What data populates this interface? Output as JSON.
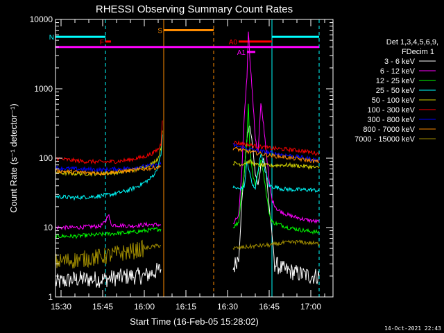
{
  "chart_data": {
    "type": "line",
    "title": "RHESSI Observing Summary Count Rates",
    "xlabel": "Start Time (16-Feb-05 15:28:02)",
    "ylabel": "Count Rate (s⁻¹ detector⁻¹)",
    "yscale": "log",
    "xlim": [
      "15:28",
      "17:08"
    ],
    "ylim": [
      1,
      10000
    ],
    "x_ticks": [
      "15:30",
      "15:45",
      "16:00",
      "16:15",
      "16:30",
      "16:45",
      "17:00"
    ],
    "y_ticks": [
      "1",
      "10",
      "100",
      "1000",
      "10000"
    ],
    "legend": {
      "header_1": "Det 1,3,4,5,6,9,",
      "header_2": "FDecim 1",
      "placement": "right",
      "entries": [
        {
          "label": "3 - 6 keV",
          "color": "#ffffff"
        },
        {
          "label": "6 - 12 keV",
          "color": "#ff00ff"
        },
        {
          "label": "12 - 25 keV",
          "color": "#00ff00"
        },
        {
          "label": "25 - 50 keV",
          "color": "#00ffff"
        },
        {
          "label": "50 - 100 keV",
          "color": "#d2d200"
        },
        {
          "label": "100 - 300 keV",
          "color": "#ff0000"
        },
        {
          "label": "300 - 800 keV",
          "color": "#0000ff"
        },
        {
          "label": "800 - 7000 keV",
          "color": "#ff8c00"
        },
        {
          "label": "7000 - 15000 keV",
          "color": "#a08c00"
        }
      ]
    },
    "flags": [
      {
        "label": "N",
        "color": "#00ffff",
        "segments": [
          [
            "15:28",
            "15:46"
          ],
          [
            "16:46",
            "17:03"
          ]
        ],
        "level": 5600
      },
      {
        "label": "F",
        "color": "#ff0000",
        "segments": [
          [
            "15:46",
            "15:48"
          ]
        ],
        "level": 4800
      },
      {
        "label": "S",
        "color": "#ff8c00",
        "segments": [
          [
            "16:07",
            "16:25"
          ]
        ],
        "level": 7000
      },
      {
        "label": "",
        "color": "#ff00ff",
        "segments": [
          [
            "15:28",
            "17:03"
          ]
        ],
        "level": 4000
      },
      {
        "label": "A0",
        "color": "#ff0000",
        "segments": [
          [
            "16:34",
            "16:46"
          ]
        ],
        "level": 4800
      },
      {
        "label": "A1",
        "color": "#ff00ff",
        "segments": [
          [
            "16:37",
            "16:40"
          ]
        ],
        "level": 3400
      }
    ],
    "vertical_lines": [
      {
        "x": "15:28",
        "color": "#00ffff",
        "style": "solid"
      },
      {
        "x": "15:46",
        "color": "#00ffff",
        "style": "dashed"
      },
      {
        "x": "16:07",
        "color": "#ff8c00",
        "style": "solid"
      },
      {
        "x": "16:25",
        "color": "#ff8c00",
        "style": "dashed"
      },
      {
        "x": "16:46",
        "color": "#00ffff",
        "style": "solid"
      },
      {
        "x": "17:03",
        "color": "#00ffff",
        "style": "dashed"
      }
    ],
    "series": [
      {
        "name": "3 - 6 keV",
        "color": "#ffffff",
        "segments": [
          [
            [
              "15:28",
              1.6
            ],
            [
              "15:35",
              1.8
            ],
            [
              "15:45",
              1.8
            ],
            [
              "15:55",
              2.0
            ],
            [
              "16:00",
              2.0
            ],
            [
              "16:05",
              2.4
            ],
            [
              "16:06",
              2.5
            ]
          ],
          [
            [
              "16:32",
              2.5
            ],
            [
              "16:34",
              4
            ],
            [
              "16:35",
              20
            ],
            [
              "16:36",
              60
            ],
            [
              "16:37",
              200
            ],
            [
              "16:38",
              300
            ],
            [
              "16:39",
              150
            ],
            [
              "16:40",
              60
            ],
            [
              "16:41",
              40
            ],
            [
              "16:42",
              80
            ],
            [
              "16:43",
              100
            ],
            [
              "16:44",
              60
            ],
            [
              "16:45",
              20
            ],
            [
              "16:46",
              8
            ],
            [
              "16:47",
              3
            ],
            [
              "16:50",
              2.5
            ],
            [
              "16:55",
              2.2
            ],
            [
              "17:00",
              2.0
            ],
            [
              "17:03",
              2.0
            ]
          ]
        ]
      },
      {
        "name": "6 - 12 keV",
        "color": "#ff00ff",
        "segments": [
          [
            [
              "15:28",
              10
            ],
            [
              "15:35",
              10
            ],
            [
              "15:44",
              10.5
            ],
            [
              "15:46",
              12
            ],
            [
              "15:47",
              16
            ],
            [
              "15:48",
              11
            ],
            [
              "15:55",
              10.5
            ],
            [
              "16:00",
              11
            ],
            [
              "16:05",
              11
            ],
            [
              "16:06",
              11
            ]
          ],
          [
            [
              "16:32",
              11
            ],
            [
              "16:34",
              15
            ],
            [
              "16:35",
              50
            ],
            [
              "16:36",
              400
            ],
            [
              "16:37",
              1500
            ],
            [
              "16:37.5",
              7000
            ],
            [
              "16:38",
              3000
            ],
            [
              "16:39",
              800
            ],
            [
              "16:40",
              200
            ],
            [
              "16:41",
              120
            ],
            [
              "16:42",
              600
            ],
            [
              "16:43",
              300
            ],
            [
              "16:44",
              120
            ],
            [
              "16:45",
              45
            ],
            [
              "16:46",
              25
            ],
            [
              "16:48",
              18
            ],
            [
              "16:52",
              15
            ],
            [
              "16:58",
              13
            ],
            [
              "17:03",
              12
            ]
          ]
        ]
      },
      {
        "name": "12 - 25 keV",
        "color": "#00ff00",
        "segments": [
          [
            [
              "15:28",
              7.5
            ],
            [
              "15:35",
              7.5
            ],
            [
              "15:45",
              8
            ],
            [
              "15:55",
              8.5
            ],
            [
              "16:00",
              9
            ],
            [
              "16:05",
              9.5
            ],
            [
              "16:06",
              9.5
            ]
          ],
          [
            [
              "16:32",
              10
            ],
            [
              "16:34",
              12
            ],
            [
              "16:35",
              30
            ],
            [
              "16:36",
              60
            ],
            [
              "16:37",
              200
            ],
            [
              "16:37.5",
              600
            ],
            [
              "16:38",
              150
            ],
            [
              "16:39",
              60
            ],
            [
              "16:40",
              40
            ],
            [
              "16:42",
              100
            ],
            [
              "16:43",
              60
            ],
            [
              "16:44",
              30
            ],
            [
              "16:45",
              16
            ],
            [
              "16:46",
              12
            ],
            [
              "16:52",
              10
            ],
            [
              "16:58",
              9
            ],
            [
              "17:03",
              8.5
            ]
          ]
        ]
      },
      {
        "name": "25 - 50 keV",
        "color": "#00ffff",
        "segments": [
          [
            [
              "15:28",
              28
            ],
            [
              "15:35",
              27
            ],
            [
              "15:42",
              28
            ],
            [
              "15:48",
              30
            ],
            [
              "15:54",
              34
            ],
            [
              "15:58",
              40
            ],
            [
              "16:02",
              50
            ],
            [
              "16:04",
              62
            ],
            [
              "16:05",
              80
            ],
            [
              "16:06",
              110
            ],
            [
              "16:06.5",
              220
            ]
          ],
          [
            [
              "16:32",
              38
            ],
            [
              "16:34",
              36
            ],
            [
              "16:36",
              38
            ],
            [
              "16:37",
              90
            ],
            [
              "16:38",
              60
            ],
            [
              "16:39",
              40
            ],
            [
              "16:40",
              38
            ],
            [
              "16:42",
              120
            ],
            [
              "16:43",
              80
            ],
            [
              "16:45",
              40
            ],
            [
              "16:50",
              36
            ],
            [
              "16:55",
              35
            ],
            [
              "17:00",
              35
            ],
            [
              "17:03",
              34
            ]
          ]
        ]
      },
      {
        "name": "50 - 100 keV",
        "color": "#d2d200",
        "segments": [
          [
            [
              "15:28",
              62
            ],
            [
              "15:35",
              60
            ],
            [
              "15:45",
              60
            ],
            [
              "15:50",
              62
            ],
            [
              "15:55",
              66
            ],
            [
              "16:00",
              74
            ],
            [
              "16:03",
              84
            ],
            [
              "16:05",
              100
            ],
            [
              "16:06",
              140
            ],
            [
              "16:06.5",
              250
            ]
          ],
          [
            [
              "16:32",
              85
            ],
            [
              "16:35",
              82
            ],
            [
              "16:38",
              90
            ],
            [
              "16:40",
              80
            ],
            [
              "16:45",
              78
            ],
            [
              "16:50",
              80
            ],
            [
              "16:55",
              78
            ],
            [
              "17:00",
              75
            ],
            [
              "17:03",
              72
            ]
          ]
        ]
      },
      {
        "name": "100 - 300 keV",
        "color": "#ff0000",
        "segments": [
          [
            [
              "15:28",
              100
            ],
            [
              "15:32",
              95
            ],
            [
              "15:38",
              90
            ],
            [
              "15:45",
              88
            ],
            [
              "15:50",
              90
            ],
            [
              "15:55",
              95
            ],
            [
              "16:00",
              105
            ],
            [
              "16:03",
              118
            ],
            [
              "16:05",
              135
            ],
            [
              "16:06",
              160
            ],
            [
              "16:06.5",
              350
            ]
          ],
          [
            [
              "16:32",
              170
            ],
            [
              "16:36",
              160
            ],
            [
              "16:40",
              150
            ],
            [
              "16:45",
              140
            ],
            [
              "16:50",
              135
            ],
            [
              "16:55",
              130
            ],
            [
              "17:00",
              122
            ],
            [
              "17:03",
              115
            ]
          ]
        ]
      },
      {
        "name": "300 - 800 keV",
        "color": "#0000ff",
        "segments": [
          [
            [
              "15:28",
              72
            ],
            [
              "15:35",
              70
            ],
            [
              "15:45",
              68
            ],
            [
              "15:55",
              72
            ],
            [
              "16:00",
              76
            ],
            [
              "16:05",
              80
            ],
            [
              "16:06",
              82
            ]
          ],
          [
            [
              "16:32",
              155
            ],
            [
              "16:36",
              140
            ],
            [
              "16:40",
              130
            ],
            [
              "16:45",
              120
            ],
            [
              "16:50",
              112
            ],
            [
              "16:55",
              105
            ],
            [
              "17:00",
              98
            ],
            [
              "17:03",
              92
            ]
          ]
        ]
      },
      {
        "name": "800 - 7000 keV",
        "color": "#ff8c00",
        "segments": [
          [
            [
              "15:28",
              66
            ],
            [
              "15:35",
              63
            ],
            [
              "15:45",
              61
            ],
            [
              "15:55",
              66
            ],
            [
              "16:00",
              70
            ],
            [
              "16:05",
              74
            ],
            [
              "16:06",
              76
            ]
          ],
          [
            [
              "16:32",
              140
            ],
            [
              "16:36",
              128
            ],
            [
              "16:40",
              120
            ],
            [
              "16:45",
              110
            ],
            [
              "16:50",
              104
            ],
            [
              "16:55",
              98
            ],
            [
              "17:00",
              92
            ],
            [
              "17:03",
              88
            ]
          ]
        ]
      },
      {
        "name": "7000 - 15000 keV",
        "color": "#a08c00",
        "segments": [
          [
            [
              "15:28",
              3.2
            ],
            [
              "15:35",
              3.4
            ],
            [
              "15:45",
              3.8
            ],
            [
              "15:50",
              4.2
            ],
            [
              "15:55",
              4.5
            ],
            [
              "16:00",
              5.0
            ],
            [
              "16:05",
              5.5
            ],
            [
              "16:06",
              5.5
            ]
          ],
          [
            [
              "16:32",
              5.0
            ],
            [
              "16:36",
              5.2
            ],
            [
              "16:40",
              5.4
            ],
            [
              "16:45",
              5.6
            ],
            [
              "16:50",
              6.0
            ],
            [
              "16:55",
              6.2
            ],
            [
              "17:00",
              6.0
            ],
            [
              "17:03",
              5.8
            ]
          ]
        ]
      }
    ]
  },
  "footer_timestamp": "14-Oct-2021 22:43"
}
